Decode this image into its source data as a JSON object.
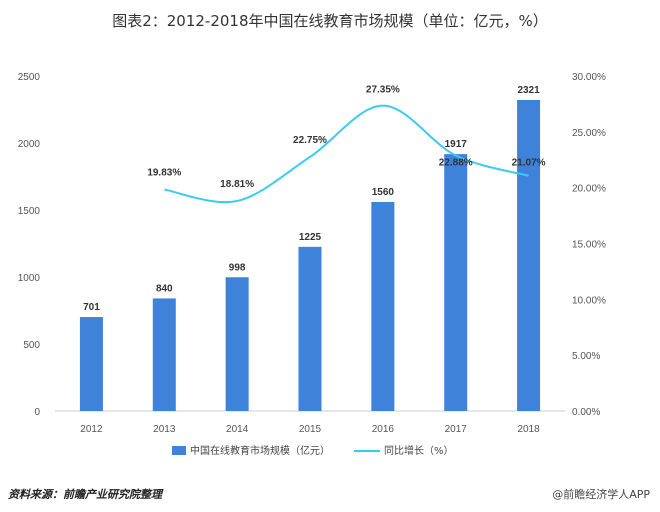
{
  "chart_data": {
    "type": "bar",
    "title": "图表2：2012-2018年中国在线教育市场规模（单位：亿元，%）",
    "categories": [
      "2012",
      "2013",
      "2014",
      "2015",
      "2016",
      "2017",
      "2018"
    ],
    "series": [
      {
        "name": "中国在线教育市场规模（亿元）",
        "type": "bar",
        "axis": "left",
        "color": "#3E82DA",
        "values": [
          701,
          840,
          998,
          1225,
          1560,
          1917,
          2321
        ],
        "labels": [
          "701",
          "840",
          "998",
          "1225",
          "1560",
          "1917",
          "2321"
        ]
      },
      {
        "name": "同比增长（%）",
        "type": "line",
        "axis": "right",
        "color": "#3ACBF3",
        "values": [
          null,
          19.83,
          18.81,
          22.75,
          27.35,
          22.88,
          21.07
        ],
        "labels": [
          "",
          "19.83%",
          "18.81%",
          "22.75%",
          "27.35%",
          "22.88%",
          "21.07%"
        ]
      }
    ],
    "y_left": {
      "ylim": [
        0,
        2500
      ],
      "ticks": [
        "0",
        "500",
        "1000",
        "1500",
        "2000",
        "2500"
      ]
    },
    "y_right": {
      "ylim": [
        0,
        30
      ],
      "ticks": [
        "0.00%",
        "5.00%",
        "10.00%",
        "15.00%",
        "20.00%",
        "25.00%",
        "30.00%"
      ]
    },
    "grid": false,
    "legend_position": "bottom"
  },
  "source": "资料来源：前瞻产业研究院整理",
  "credit": "@前瞻经济学人APP"
}
